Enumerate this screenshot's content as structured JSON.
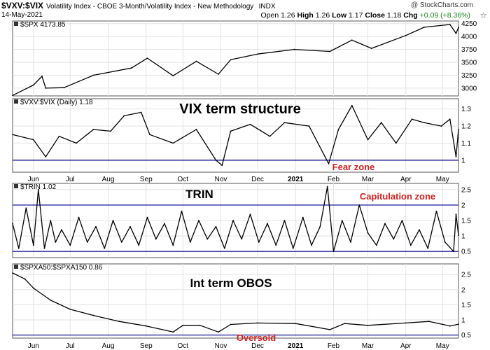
{
  "header": {
    "symbol": "$VXV:$VIX",
    "description": "Volatility Index - CBOE 3-Month/Volatility Index - New Methodology",
    "exchange": "INDX",
    "date": "14-May-2021",
    "watermark": "@ StockCharts.com",
    "open_label": "Open",
    "open": "1.26",
    "high_label": "High",
    "high": "1.26",
    "low_label": "Low",
    "low": "1.17",
    "close_label": "Close",
    "close": "1.18",
    "chg_label": "Chg",
    "chg": "+0.09 (+8.36%)",
    "star_icon": "star-outline-icon"
  },
  "colors": {
    "price": "#000000",
    "reference": "#00008b",
    "annotation": "#cc2222",
    "grid": "#e3e3e3",
    "frame": "#555555"
  },
  "chart_data": [
    {
      "type": "line",
      "panel": "spx",
      "legend": "$SPX 4173.85",
      "x": [
        "2020-05-15",
        "2020-06-01",
        "2020-06-08",
        "2020-06-11",
        "2020-06-26",
        "2020-07-20",
        "2020-08-20",
        "2020-09-02",
        "2020-09-23",
        "2020-10-12",
        "2020-10-30",
        "2020-11-09",
        "2020-12-01",
        "2020-12-31",
        "2021-01-29",
        "2021-02-16",
        "2021-03-04",
        "2021-04-01",
        "2021-04-16",
        "2021-05-07",
        "2021-05-12",
        "2021-05-14"
      ],
      "values": [
        2860,
        3060,
        3230,
        3000,
        3010,
        3250,
        3390,
        3580,
        3240,
        3520,
        3270,
        3550,
        3660,
        3750,
        3710,
        3930,
        3770,
        4020,
        4180,
        4232,
        4060,
        4174
      ],
      "yticks": [
        3000,
        3250,
        3500,
        3750,
        4000,
        4250
      ],
      "ylim": [
        2850,
        4300
      ]
    },
    {
      "type": "line",
      "panel": "vix-term",
      "legend": "$VXV:$VIX (Daily) 1.18",
      "title": "VIX term structure",
      "annotation": "Fear zone",
      "reference_lines": [
        1.0
      ],
      "x": [
        "2020-05-15",
        "2020-06-01",
        "2020-06-11",
        "2020-06-22",
        "2020-07-06",
        "2020-07-20",
        "2020-08-03",
        "2020-08-14",
        "2020-08-28",
        "2020-09-04",
        "2020-09-23",
        "2020-10-12",
        "2020-10-28",
        "2020-11-02",
        "2020-11-09",
        "2020-11-25",
        "2020-12-11",
        "2020-12-23",
        "2021-01-12",
        "2021-01-28",
        "2021-02-05",
        "2021-02-16",
        "2021-03-01",
        "2021-03-12",
        "2021-03-24",
        "2021-04-06",
        "2021-04-16",
        "2021-04-30",
        "2021-05-07",
        "2021-05-12",
        "2021-05-14"
      ],
      "values": [
        1.15,
        1.12,
        1.02,
        1.14,
        1.1,
        1.18,
        1.17,
        1.26,
        1.28,
        1.15,
        1.1,
        1.18,
        1.0,
        0.97,
        1.17,
        1.21,
        1.14,
        1.22,
        1.2,
        0.98,
        1.18,
        1.32,
        1.12,
        1.22,
        1.1,
        1.24,
        1.22,
        1.2,
        1.24,
        1.02,
        1.18
      ],
      "yticks": [
        1.0,
        1.1,
        1.2,
        1.3
      ],
      "ylim": [
        0.93,
        1.36
      ]
    },
    {
      "type": "line",
      "panel": "trin",
      "legend": "$TRIN 1.02",
      "title": "TRIN",
      "annotation": "Capitulation zone",
      "reference_lines": [
        2.0,
        0.5
      ],
      "x": [
        "2020-05-15",
        "2020-05-20",
        "2020-05-26",
        "2020-06-01",
        "2020-06-05",
        "2020-06-10",
        "2020-06-15",
        "2020-06-19",
        "2020-06-24",
        "2020-07-01",
        "2020-07-08",
        "2020-07-15",
        "2020-07-22",
        "2020-07-29",
        "2020-08-05",
        "2020-08-12",
        "2020-08-19",
        "2020-08-26",
        "2020-09-02",
        "2020-09-09",
        "2020-09-16",
        "2020-09-23",
        "2020-09-30",
        "2020-10-07",
        "2020-10-14",
        "2020-10-21",
        "2020-10-28",
        "2020-11-04",
        "2020-11-11",
        "2020-11-18",
        "2020-11-25",
        "2020-12-02",
        "2020-12-09",
        "2020-12-16",
        "2020-12-23",
        "2020-12-30",
        "2021-01-07",
        "2021-01-14",
        "2021-01-21",
        "2021-01-27",
        "2021-02-01",
        "2021-02-08",
        "2021-02-15",
        "2021-02-22",
        "2021-03-01",
        "2021-03-08",
        "2021-03-15",
        "2021-03-22",
        "2021-03-29",
        "2021-04-05",
        "2021-04-12",
        "2021-04-19",
        "2021-04-26",
        "2021-05-03",
        "2021-05-10",
        "2021-05-12",
        "2021-05-14"
      ],
      "values": [
        1.4,
        0.6,
        1.9,
        0.7,
        2.5,
        0.6,
        1.5,
        0.8,
        1.2,
        0.7,
        1.6,
        0.8,
        1.3,
        0.6,
        1.5,
        0.8,
        1.3,
        0.7,
        1.6,
        0.9,
        1.4,
        0.7,
        1.8,
        0.8,
        1.5,
        0.9,
        1.3,
        0.6,
        1.5,
        0.9,
        1.7,
        0.8,
        1.4,
        0.7,
        1.5,
        0.6,
        1.6,
        0.7,
        1.3,
        2.6,
        0.5,
        1.5,
        0.8,
        2.0,
        1.1,
        0.7,
        1.4,
        0.9,
        1.5,
        0.7,
        1.2,
        0.6,
        1.8,
        0.8,
        0.5,
        1.7,
        1.02
      ],
      "yticks": [
        0.5,
        1.0,
        1.5,
        2.0,
        2.5
      ],
      "ylim": [
        0.3,
        2.7
      ]
    },
    {
      "type": "line",
      "panel": "obos",
      "legend": "$SPXA50:$SPXA150 0.86",
      "title": "Int term OBOS",
      "annotation": "Oversold",
      "reference_lines": [
        0.5
      ],
      "x": [
        "2020-05-15",
        "2020-05-25",
        "2020-06-01",
        "2020-06-15",
        "2020-07-01",
        "2020-07-20",
        "2020-08-10",
        "2020-09-01",
        "2020-09-23",
        "2020-10-01",
        "2020-10-15",
        "2020-10-30",
        "2020-11-09",
        "2020-12-01",
        "2021-01-01",
        "2021-01-29",
        "2021-02-10",
        "2021-03-01",
        "2021-04-01",
        "2021-04-20",
        "2021-05-07",
        "2021-05-14"
      ],
      "values": [
        2.55,
        2.35,
        2.05,
        1.65,
        1.35,
        1.15,
        0.95,
        0.8,
        0.6,
        0.82,
        0.82,
        0.6,
        0.85,
        0.9,
        0.88,
        0.68,
        0.88,
        0.82,
        0.9,
        0.95,
        0.8,
        0.86
      ],
      "yticks": [
        0.5,
        1.0,
        1.5,
        2.0,
        2.5
      ],
      "ylim": [
        0.4,
        2.85
      ]
    }
  ],
  "x_axis": {
    "ticks": [
      {
        "label": "Jun",
        "date": "2020-06-01",
        "bold": false
      },
      {
        "label": "Jul",
        "date": "2020-07-01",
        "bold": false
      },
      {
        "label": "Aug",
        "date": "2020-08-01",
        "bold": false
      },
      {
        "label": "Sep",
        "date": "2020-09-01",
        "bold": false
      },
      {
        "label": "Oct",
        "date": "2020-10-01",
        "bold": false
      },
      {
        "label": "Nov",
        "date": "2020-11-01",
        "bold": false
      },
      {
        "label": "Dec",
        "date": "2020-12-01",
        "bold": false
      },
      {
        "label": "2021",
        "date": "2021-01-01",
        "bold": true
      },
      {
        "label": "Feb",
        "date": "2021-02-01",
        "bold": false
      },
      {
        "label": "Mar",
        "date": "2021-03-01",
        "bold": false
      },
      {
        "label": "Apr",
        "date": "2021-04-01",
        "bold": false
      },
      {
        "label": "May",
        "date": "2021-05-01",
        "bold": false
      }
    ]
  }
}
